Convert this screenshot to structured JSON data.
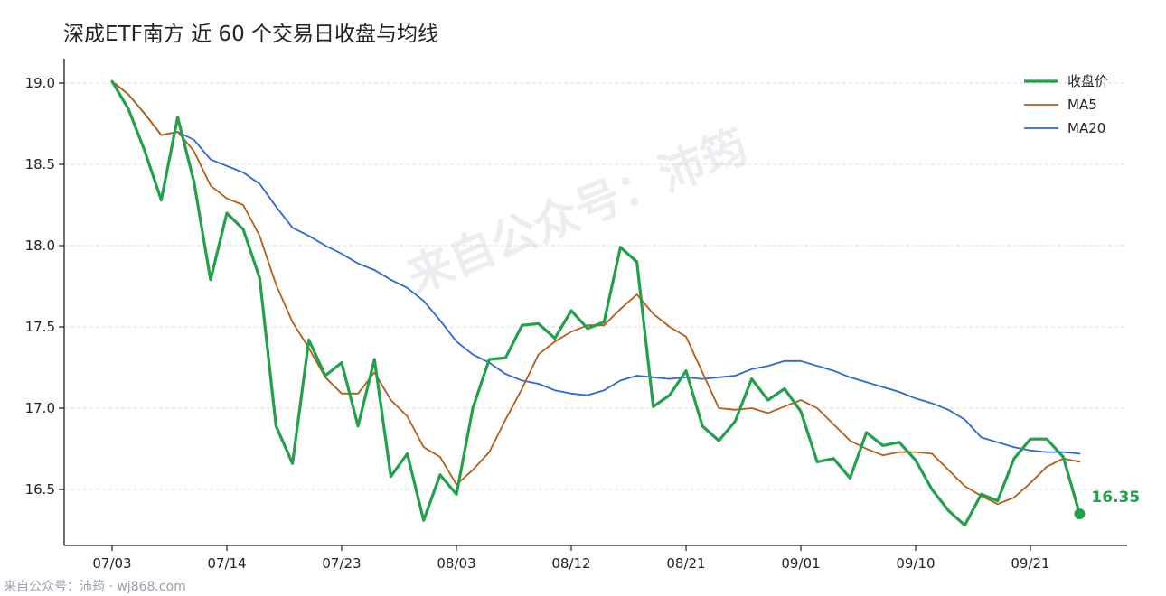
{
  "chart_data": {
    "type": "line",
    "title": "深成ETF南方 近 60 个交易日收盘与均线",
    "xlabel": "",
    "ylabel": "",
    "x_tick_labels": [
      "07/03",
      "07/14",
      "07/23",
      "08/03",
      "08/12",
      "08/21",
      "09/01",
      "09/10",
      "09/21"
    ],
    "x_tick_indices": [
      0,
      7,
      14,
      21,
      28,
      35,
      42,
      49,
      56
    ],
    "y_ticks": [
      16.5,
      17.0,
      17.5,
      18.0,
      18.5,
      19.0
    ],
    "y_tick_labels": [
      "16.5",
      "17.0",
      "17.5",
      "18.0",
      "18.5",
      "19.0"
    ],
    "ylim": [
      16.15,
      19.15
    ],
    "xlim": [
      -3,
      62
    ],
    "grid": "horizontal dashed",
    "legend_position": "top-right",
    "series": [
      {
        "name": "收盘价",
        "color": "#22a04b",
        "values": [
          19.01,
          18.84,
          18.58,
          18.28,
          18.79,
          18.39,
          17.79,
          18.2,
          18.1,
          17.8,
          16.89,
          16.66,
          17.42,
          17.2,
          17.28,
          16.89,
          17.3,
          16.58,
          16.72,
          16.31,
          16.59,
          16.47,
          17.0,
          17.3,
          17.31,
          17.51,
          17.52,
          17.43,
          17.6,
          17.49,
          17.53,
          17.99,
          17.9,
          17.01,
          17.08,
          17.23,
          16.89,
          16.8,
          16.92,
          17.18,
          17.05,
          17.12,
          16.98,
          16.67,
          16.69,
          16.57,
          16.85,
          16.77,
          16.79,
          16.68,
          16.5,
          16.37,
          16.28,
          16.47,
          16.43,
          16.69,
          16.81,
          16.81,
          16.7,
          16.35
        ]
      },
      {
        "name": "MA5",
        "color": "#b65c14",
        "values": [
          19.01,
          18.93,
          18.81,
          18.68,
          18.7,
          18.58,
          18.37,
          18.29,
          18.25,
          18.06,
          17.76,
          17.53,
          17.37,
          17.19,
          17.09,
          17.09,
          17.22,
          17.05,
          16.95,
          16.76,
          16.7,
          16.53,
          16.62,
          16.73,
          16.93,
          17.12,
          17.33,
          17.41,
          17.47,
          17.51,
          17.51,
          17.61,
          17.7,
          17.58,
          17.5,
          17.44,
          17.22,
          17.0,
          16.99,
          17.0,
          16.97,
          17.01,
          17.05,
          17.0,
          16.9,
          16.8,
          16.75,
          16.71,
          16.73,
          16.73,
          16.72,
          16.62,
          16.52,
          16.46,
          16.41,
          16.45,
          16.54,
          16.64,
          16.69,
          16.67
        ]
      },
      {
        "name": "MA20",
        "color": "#2d67d6",
        "values": [
          19.01,
          18.93,
          18.81,
          18.68,
          18.7,
          18.65,
          18.53,
          18.49,
          18.45,
          18.38,
          18.24,
          18.11,
          18.06,
          18.0,
          17.95,
          17.89,
          17.85,
          17.79,
          17.74,
          17.66,
          17.54,
          17.41,
          17.33,
          17.28,
          17.21,
          17.17,
          17.15,
          17.11,
          17.09,
          17.08,
          17.11,
          17.17,
          17.2,
          17.19,
          17.18,
          17.19,
          17.18,
          17.19,
          17.2,
          17.24,
          17.26,
          17.29,
          17.29,
          17.26,
          17.23,
          17.19,
          17.16,
          17.13,
          17.1,
          17.06,
          17.03,
          16.99,
          16.93,
          16.82,
          16.79,
          16.76,
          16.74,
          16.73,
          16.73,
          16.72
        ]
      }
    ],
    "end_label": "16.35"
  },
  "watermark": "来自公众号：沛筠",
  "footer": "来自公众号：沛筠 · wj868.com",
  "colors": {
    "axis": "#222222",
    "grid": "#dddddd",
    "end_label": "#22a04b"
  }
}
